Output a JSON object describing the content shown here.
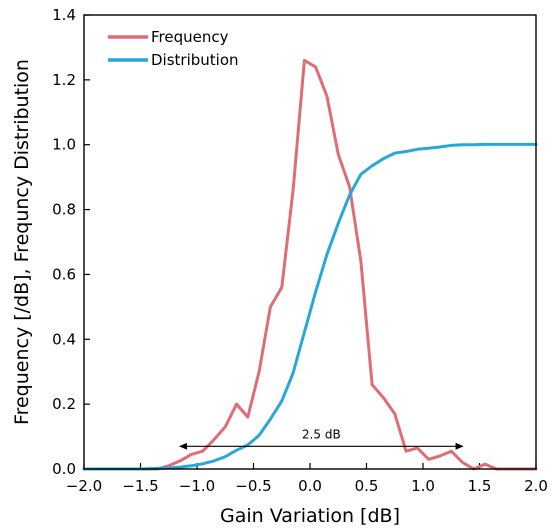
{
  "chart_data": {
    "type": "line",
    "xlabel": "Gain Variation [dB]",
    "ylabel": "Frequency [/dB], Frequncy Distribution",
    "xlim": [
      -2.0,
      2.0
    ],
    "ylim": [
      0.0,
      1.4
    ],
    "xticks": [
      -2.0,
      -1.5,
      -1.0,
      -0.5,
      0.0,
      0.5,
      1.0,
      1.5,
      2.0
    ],
    "xtick_labels": [
      "−2.0",
      "−1.5",
      "−1.0",
      "−0.5",
      "0.0",
      "0.5",
      "1.0",
      "1.5",
      "2.0"
    ],
    "yticks": [
      0.0,
      0.2,
      0.4,
      0.6,
      0.8,
      1.0,
      1.2,
      1.4
    ],
    "ytick_labels": [
      "0.0",
      "0.2",
      "0.4",
      "0.6",
      "0.8",
      "1.0",
      "1.2",
      "1.4"
    ],
    "grid": false,
    "legend_position": "top-left",
    "series": [
      {
        "name": "Frequency",
        "color": "#e06c75",
        "x": [
          -2.0,
          -1.9,
          -1.8,
          -1.7,
          -1.6,
          -1.5,
          -1.45,
          -1.35,
          -1.25,
          -1.15,
          -1.05,
          -0.95,
          -0.85,
          -0.75,
          -0.65,
          -0.55,
          -0.45,
          -0.35,
          -0.25,
          -0.15,
          -0.05,
          0.05,
          0.15,
          0.25,
          0.35,
          0.45,
          0.55,
          0.65,
          0.75,
          0.85,
          0.95,
          1.05,
          1.15,
          1.25,
          1.35,
          1.45,
          1.55,
          1.65,
          1.75,
          1.85,
          2.0
        ],
        "y": [
          0.0,
          0.0,
          0.0,
          0.0,
          0.0,
          0.0,
          0.0,
          0.0,
          0.01,
          0.025,
          0.045,
          0.055,
          0.09,
          0.13,
          0.2,
          0.16,
          0.3,
          0.5,
          0.56,
          0.86,
          1.26,
          1.24,
          1.15,
          0.97,
          0.87,
          0.64,
          0.26,
          0.22,
          0.17,
          0.055,
          0.065,
          0.03,
          0.04,
          0.055,
          0.02,
          0.0,
          0.015,
          0.0,
          0.0,
          0.0,
          0.0
        ]
      },
      {
        "name": "Distribution",
        "color": "#2aa7d9",
        "x": [
          -2.0,
          -1.5,
          -1.25,
          -1.15,
          -1.05,
          -0.95,
          -0.85,
          -0.75,
          -0.65,
          -0.55,
          -0.45,
          -0.35,
          -0.25,
          -0.15,
          -0.05,
          0.05,
          0.15,
          0.25,
          0.35,
          0.45,
          0.55,
          0.65,
          0.75,
          0.85,
          0.95,
          1.05,
          1.15,
          1.25,
          1.35,
          1.45,
          1.55,
          1.75,
          2.0
        ],
        "y": [
          0.0,
          0.0,
          0.003,
          0.006,
          0.01,
          0.016,
          0.025,
          0.038,
          0.058,
          0.074,
          0.104,
          0.154,
          0.21,
          0.296,
          0.422,
          0.546,
          0.661,
          0.758,
          0.845,
          0.909,
          0.935,
          0.957,
          0.974,
          0.979,
          0.986,
          0.989,
          0.993,
          0.998,
          1.0,
          1.0,
          1.001,
          1.001,
          1.001
        ]
      }
    ],
    "annotation": {
      "text": "2.5 dB",
      "x_start": -1.15,
      "x_end": 1.35,
      "y": 0.07
    }
  }
}
